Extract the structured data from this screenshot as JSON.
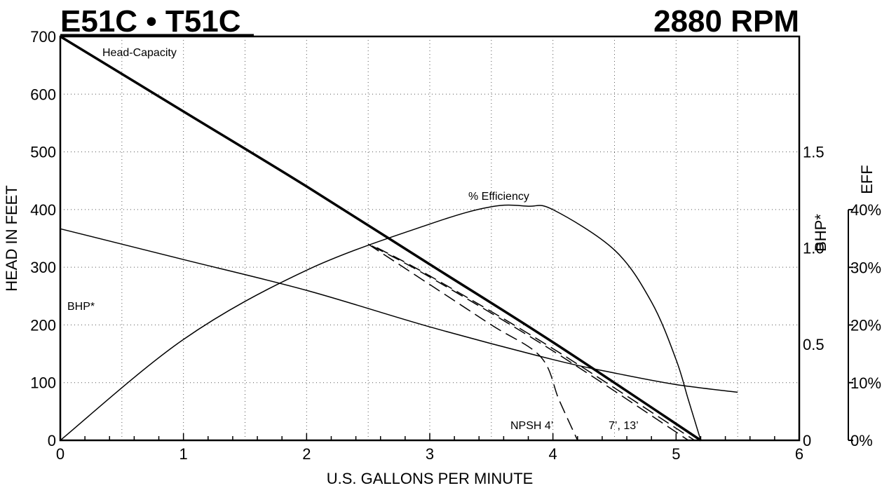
{
  "header": {
    "model": "E51C • T51C",
    "speed": "2880 RPM"
  },
  "chart_data": {
    "type": "line",
    "xlabel": "U.S. GALLONS PER MINUTE",
    "ylabel": "HEAD IN FEET",
    "bhp_axis_label": "BHP*",
    "eff_axis_label": "EFF",
    "xlim": [
      0,
      6
    ],
    "ylim": [
      0,
      700
    ],
    "bhp_lim": [
      0,
      2.1
    ],
    "eff_lim": [
      0,
      40
    ],
    "grid": true,
    "x_ticks": [
      "0",
      "1",
      "2",
      "3",
      "4",
      "5",
      "6"
    ],
    "y_ticks": [
      "0",
      "100",
      "200",
      "300",
      "400",
      "500",
      "600",
      "700"
    ],
    "bhp_ticks": [
      "0",
      "0.5",
      "1.0",
      "1.5"
    ],
    "eff_ticks": [
      "0%",
      "10%",
      "20%",
      "30%",
      "40%"
    ],
    "series": [
      {
        "name": "Head-Capacity",
        "axis": "head",
        "style": "bold",
        "x": [
          0,
          1,
          2,
          3,
          4,
          5.2
        ],
        "y": [
          700,
          570,
          440,
          305,
          170,
          0
        ]
      },
      {
        "name": "% Efficiency",
        "axis": "eff",
        "style": "thin",
        "x": [
          0,
          1,
          2,
          3,
          3.5,
          3.8,
          4.0,
          4.5,
          4.8,
          5.0,
          5.1,
          5.2
        ],
        "y": [
          0,
          17.5,
          29.5,
          37.5,
          40.5,
          40.6,
          40,
          33,
          24,
          14,
          7,
          0
        ]
      },
      {
        "name": "BHP*",
        "axis": "bhp",
        "style": "thin",
        "x": [
          0,
          1,
          2,
          3,
          4,
          4.5,
          5.0,
          5.5
        ],
        "y": [
          1.1,
          0.94,
          0.78,
          0.59,
          0.42,
          0.35,
          0.29,
          0.25
        ]
      },
      {
        "name": "NPSH 4'",
        "axis": "head",
        "style": "dashed",
        "x": [
          2.5,
          3.0,
          3.5,
          3.9,
          4.05,
          4.2
        ],
        "y": [
          340,
          270,
          200,
          145,
          70,
          0
        ]
      },
      {
        "name": "7'",
        "axis": "head",
        "style": "dashed",
        "x": [
          2.53,
          3.0,
          4.0,
          5.1
        ],
        "y": [
          337,
          283,
          155,
          0
        ]
      },
      {
        "name": "13'",
        "axis": "head",
        "style": "dashed",
        "x": [
          2.57,
          3.0,
          4.0,
          5.15
        ],
        "y": [
          334,
          285,
          159,
          0
        ]
      }
    ],
    "annotations": {
      "head_capacity": "Head-Capacity",
      "efficiency": "% Efficiency",
      "bhp": "BHP*",
      "npsh_4": "NPSH 4’",
      "npsh_7_13": "7’, 13’"
    }
  }
}
